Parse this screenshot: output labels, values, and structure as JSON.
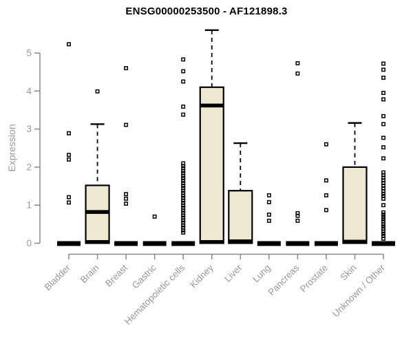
{
  "header": {
    "title": "ENSG00000253500 - AF121898.3"
  },
  "chart_data": {
    "type": "boxplot",
    "title": "ENSG00000253500 - AF121898.3",
    "xlabel": "",
    "ylabel": "Expression",
    "ylim": [
      0,
      5
    ],
    "yticks": [
      0,
      1,
      2,
      3,
      4,
      5
    ],
    "grid": false,
    "legend": false,
    "categories": [
      "Bladder",
      "Brain",
      "Breast",
      "Gastric",
      "Hematopoietic cells",
      "Kidney",
      "Liver",
      "Lung",
      "Pancreas",
      "Prostate",
      "Skin",
      "Unknown / Other"
    ],
    "boxes": [
      {
        "category": "Bladder",
        "flat": true,
        "q1": 0,
        "median": 0,
        "q3": 0,
        "whisker_low": 0,
        "whisker_high": 0,
        "outliers": [
          5.23,
          2.89,
          2.32,
          2.2,
          1.21,
          1.07
        ]
      },
      {
        "category": "Brain",
        "flat": false,
        "q1": 0,
        "median": 0.82,
        "q3": 1.52,
        "whisker_low": 0,
        "whisker_high": 3.13,
        "outliers": [
          3.99
        ]
      },
      {
        "category": "Breast",
        "flat": true,
        "q1": 0,
        "median": 0,
        "q3": 0,
        "whisker_low": 0,
        "whisker_high": 0,
        "outliers": [
          4.6,
          3.11,
          1.29,
          1.17,
          1.04
        ]
      },
      {
        "category": "Gastric",
        "flat": true,
        "q1": 0,
        "median": 0,
        "q3": 0,
        "whisker_low": 0,
        "whisker_high": 0,
        "outliers": [
          0.7
        ]
      },
      {
        "category": "Hematopoietic cells",
        "flat": true,
        "q1": 0,
        "median": 0,
        "q3": 0,
        "whisker_low": 0,
        "whisker_high": 0,
        "outliers": [
          4.83,
          4.52,
          4.25,
          3.59,
          3.38,
          2.1,
          2.03,
          1.97,
          1.9,
          1.84,
          1.77,
          1.71,
          1.64,
          1.58,
          1.51,
          1.45,
          1.38,
          1.32,
          1.25,
          1.19,
          1.12,
          1.06,
          0.99,
          0.93,
          0.86,
          0.8,
          0.73,
          0.67,
          0.6,
          0.54,
          0.47,
          0.41,
          0.34,
          0.28
        ]
      },
      {
        "category": "Kidney",
        "flat": false,
        "q1": 0,
        "median": 3.62,
        "q3": 4.1,
        "whisker_low": 0,
        "whisker_high": 5.6,
        "outliers": []
      },
      {
        "category": "Liver",
        "flat": false,
        "q1": 0,
        "median": 0.05,
        "q3": 1.38,
        "whisker_low": 0,
        "whisker_high": 2.63,
        "outliers": []
      },
      {
        "category": "Lung",
        "flat": true,
        "q1": 0,
        "median": 0,
        "q3": 0,
        "whisker_low": 0,
        "whisker_high": 0,
        "outliers": [
          1.26,
          1.08,
          0.75,
          0.59
        ]
      },
      {
        "category": "Pancreas",
        "flat": true,
        "q1": 0,
        "median": 0,
        "q3": 0,
        "whisker_low": 0,
        "whisker_high": 0,
        "outliers": [
          4.73,
          4.46,
          0.79,
          0.72,
          0.59
        ]
      },
      {
        "category": "Prostate",
        "flat": true,
        "q1": 0,
        "median": 0,
        "q3": 0,
        "whisker_low": 0,
        "whisker_high": 0,
        "outliers": [
          2.6,
          1.65,
          1.26,
          0.87
        ]
      },
      {
        "category": "Skin",
        "flat": false,
        "q1": 0,
        "median": 0.04,
        "q3": 2.0,
        "whisker_low": 0,
        "whisker_high": 3.16,
        "outliers": []
      },
      {
        "category": "Unknown / Other",
        "flat": true,
        "q1": 0,
        "median": 0,
        "q3": 0,
        "whisker_low": 0,
        "whisker_high": 0,
        "outliers": [
          4.72,
          4.56,
          4.35,
          3.95,
          3.78,
          3.34,
          3.13,
          2.77,
          2.52,
          2.23,
          1.86,
          1.79,
          1.72,
          1.65,
          1.58,
          1.51,
          1.44,
          1.37,
          1.3,
          1.24,
          1.17,
          1.0,
          0.81,
          0.75,
          0.69,
          0.63,
          0.57,
          0.5,
          0.44,
          0.38,
          0.31,
          0.25,
          0.19,
          0.12
        ]
      }
    ],
    "colors": {
      "box_fill": "#EDE8D1",
      "box_stroke": "#000000",
      "median": "#000000",
      "whisker": "#000000",
      "outlier_stroke": "#000000",
      "axis_line": "#888888",
      "tick_label": "#999999",
      "title": "#000000",
      "background": "#ffffff"
    }
  }
}
